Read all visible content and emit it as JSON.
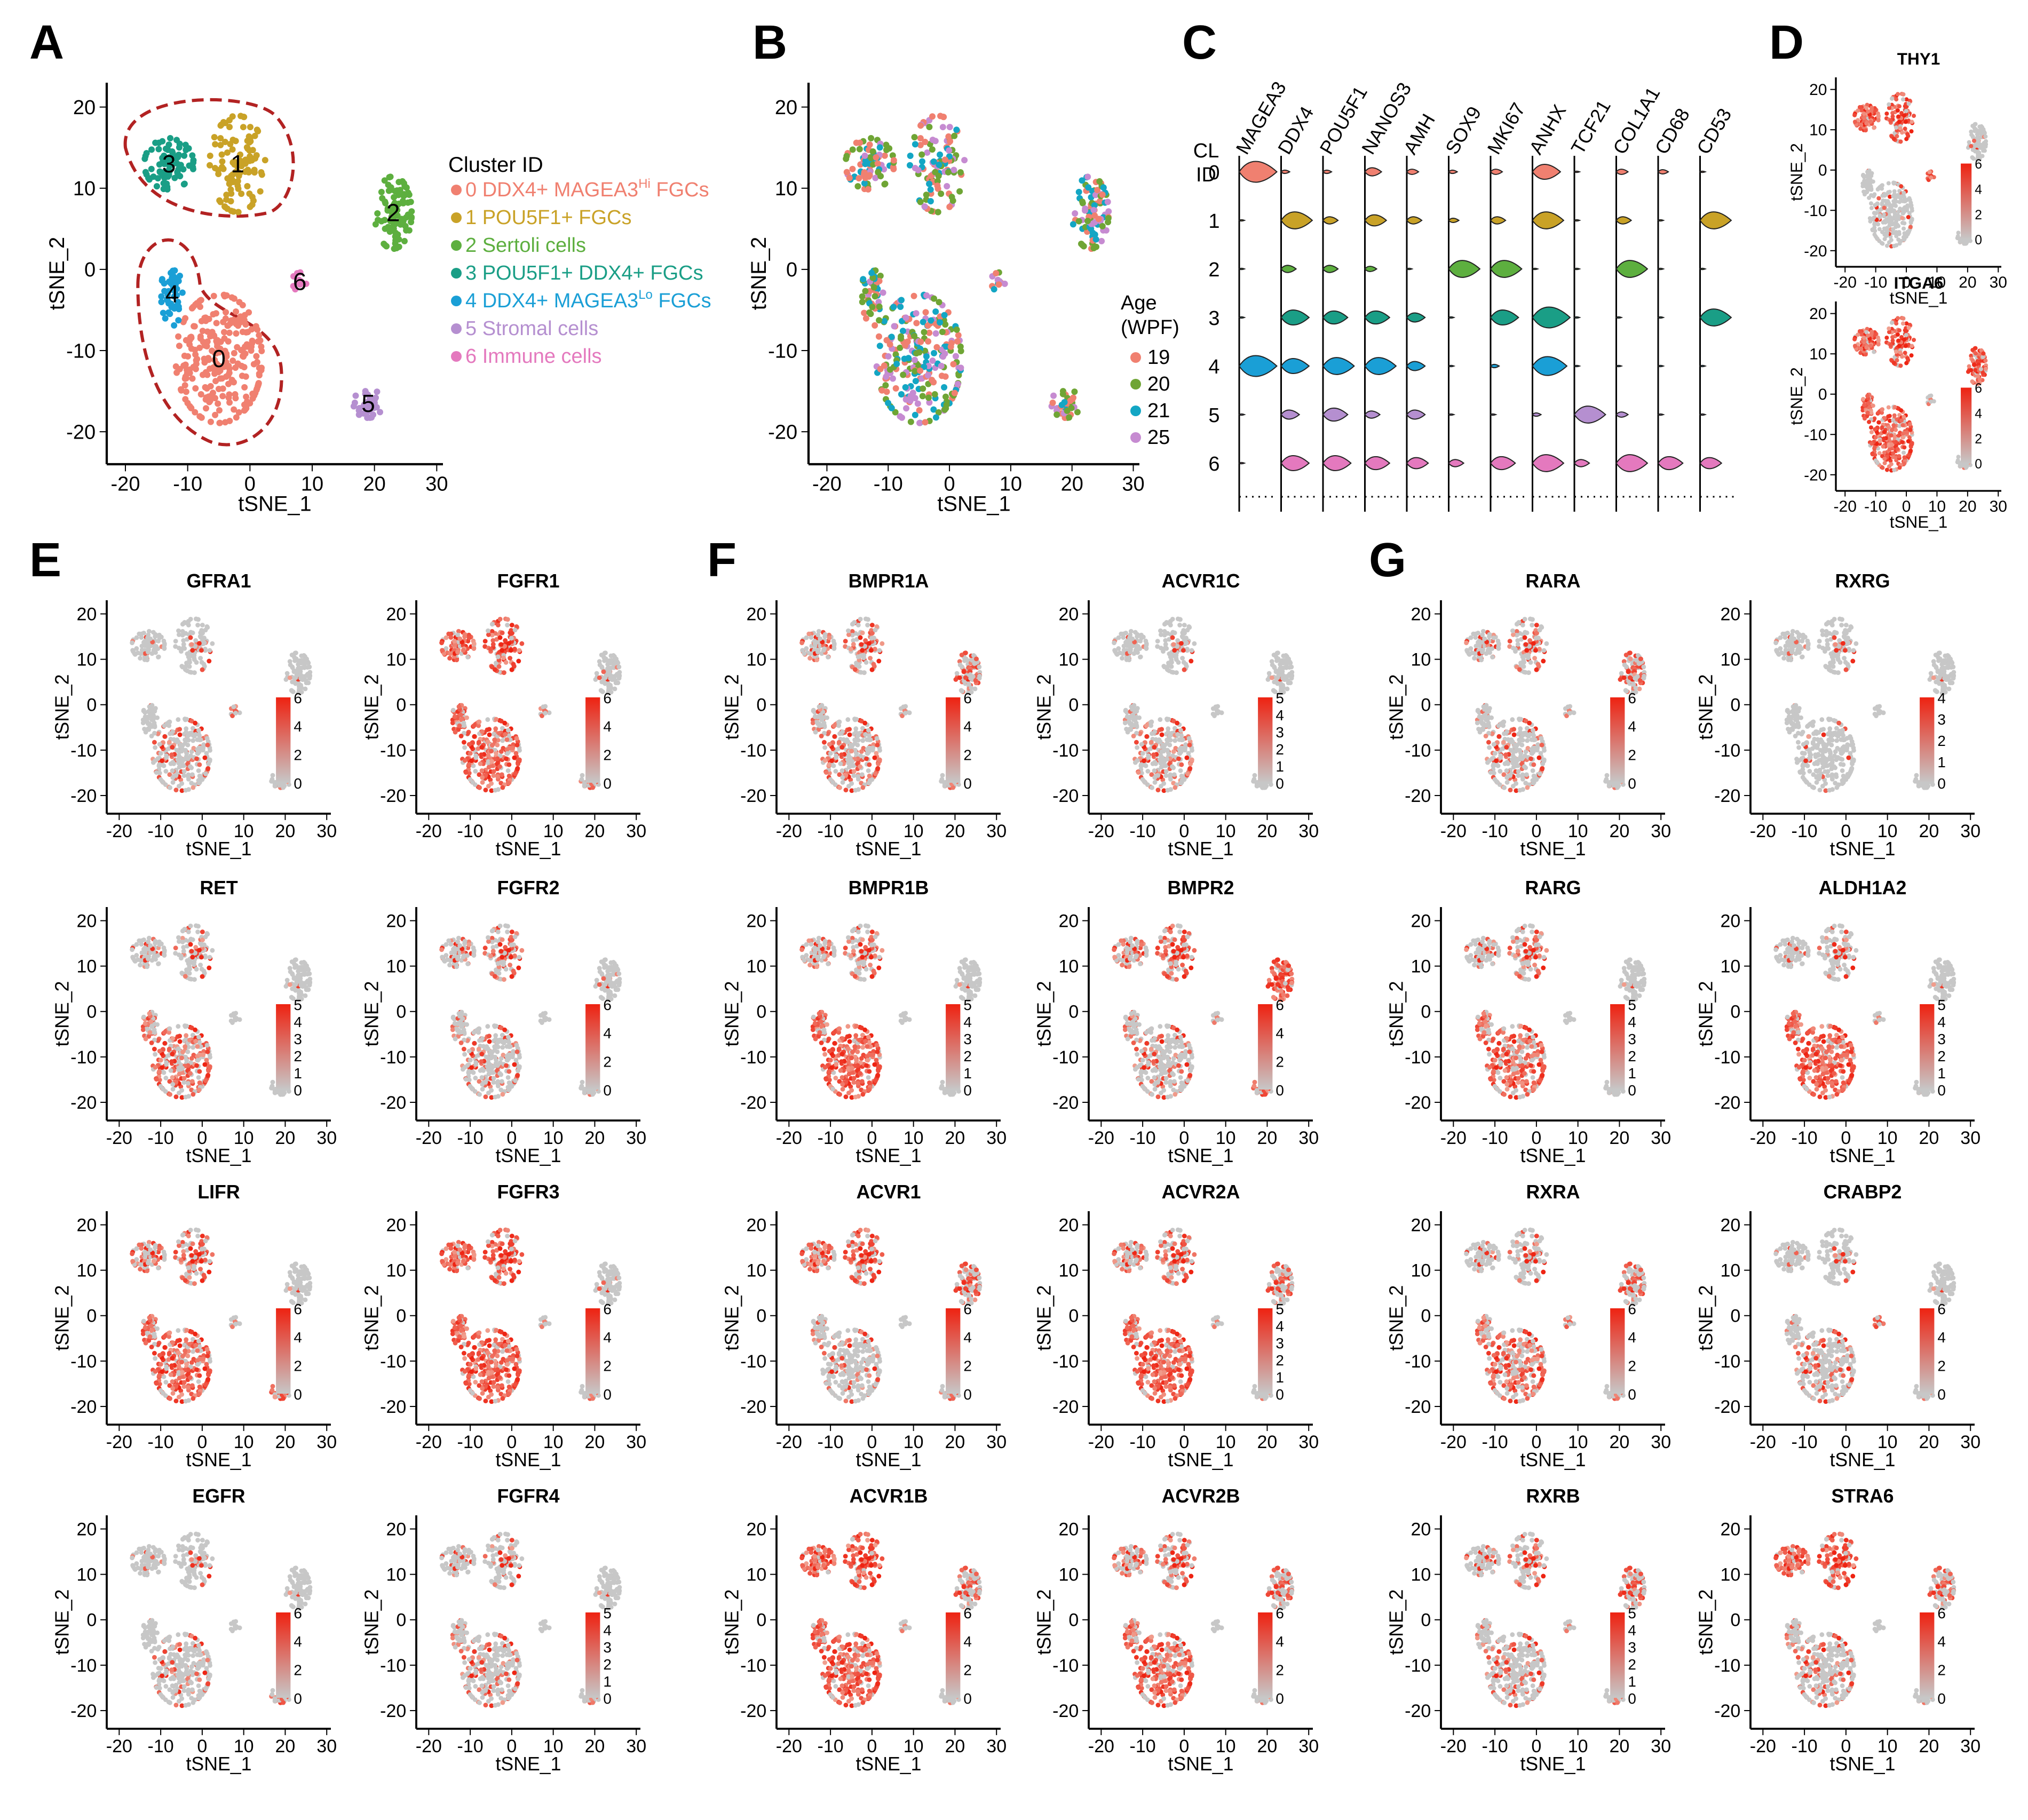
{
  "panel_letters": [
    "A",
    "B",
    "C",
    "D",
    "E",
    "F",
    "G"
  ],
  "axes": {
    "xlabel": "tSNE_1",
    "ylabel": "tSNE_2",
    "xticks": [
      -20,
      -10,
      0,
      10,
      20,
      30
    ],
    "yticks": [
      20,
      10,
      0,
      -10,
      -20
    ],
    "xlim": [
      -23,
      31
    ],
    "ylim": [
      -24,
      23
    ]
  },
  "colors": {
    "clusters": [
      "#F08070",
      "#C9A227",
      "#5DAF3F",
      "#1A9E86",
      "#1A9FD6",
      "#B58FD0",
      "#E479BE"
    ],
    "ages": [
      "#F08070",
      "#6FA535",
      "#13A6C4",
      "#C68BD1"
    ],
    "grey": "#C7C7C7",
    "red": "#EE2211",
    "dashed_outline": "#B22222"
  },
  "chart_data": [
    {
      "panel": "A",
      "type": "scatter",
      "legend_title": "Cluster ID",
      "cluster_numbers": [
        "0",
        "1",
        "2",
        "3",
        "4",
        "5",
        "6"
      ],
      "legend": [
        {
          "prefix": "0 DDX4+ MAGEA3",
          "sup": "Hi",
          "suffix": " FGCs"
        },
        {
          "prefix": "1 POU5F1+ FGCs",
          "sup": "",
          "suffix": ""
        },
        {
          "prefix": "2 Sertoli cells",
          "sup": "",
          "suffix": ""
        },
        {
          "prefix": "3 POU5F1+ DDX4+ FGCs",
          "sup": "",
          "suffix": ""
        },
        {
          "prefix": "4 DDX4+ MAGEA3",
          "sup": "Lo",
          "suffix": " FGCs"
        },
        {
          "prefix": "5 Stromal cells",
          "sup": "",
          "suffix": ""
        },
        {
          "prefix": "6 Immune cells",
          "sup": "",
          "suffix": ""
        }
      ],
      "cluster_centers": [
        {
          "id": 0,
          "x": -5,
          "y": -11,
          "rx": 7,
          "ry": 8,
          "n": 260
        },
        {
          "id": 1,
          "x": -2,
          "y": 13,
          "rx": 4.5,
          "ry": 6,
          "n": 110
        },
        {
          "id": 2,
          "x": 23,
          "y": 7,
          "rx": 3,
          "ry": 4.5,
          "n": 90
        },
        {
          "id": 3,
          "x": -13,
          "y": 13,
          "rx": 4,
          "ry": 3.2,
          "n": 80
        },
        {
          "id": 4,
          "x": -12.5,
          "y": -3,
          "rx": 1.8,
          "ry": 4,
          "n": 45
        },
        {
          "id": 5,
          "x": 19,
          "y": -16.5,
          "rx": 2.4,
          "ry": 1.8,
          "n": 35
        },
        {
          "id": 6,
          "x": 8,
          "y": -1.5,
          "rx": 1.2,
          "ry": 1.2,
          "n": 12
        }
      ]
    },
    {
      "panel": "B",
      "type": "scatter",
      "legend_title_line1": "Age",
      "legend_title_line2": "(WPF)",
      "ages": [
        "19",
        "20",
        "21",
        "25"
      ]
    },
    {
      "panel": "C",
      "type": "violin",
      "row_title_line1": "CL",
      "row_title_line2": "ID",
      "clusters": [
        "0",
        "1",
        "2",
        "3",
        "4",
        "5",
        "6"
      ],
      "genes": [
        "MAGEA3",
        "DDX4",
        "POU5F1",
        "NANOS3",
        "AMH",
        "SOX9",
        "MKI67",
        "ANHX",
        "TCF21",
        "COL1A1",
        "CD68",
        "CD53"
      ],
      "expression": [
        [
          1.0,
          0.1,
          0.1,
          0.35,
          0.2,
          0.1,
          0.2,
          0.7,
          0.0,
          0.2,
          0.15,
          0.0
        ],
        [
          0.0,
          0.8,
          0.3,
          0.5,
          0.3,
          0.15,
          0.3,
          0.8,
          0.0,
          0.3,
          0.0,
          0.8
        ],
        [
          0.0,
          0.3,
          0.3,
          0.2,
          0.0,
          0.8,
          0.8,
          0.0,
          0.0,
          0.8,
          0.0,
          0.0
        ],
        [
          0.0,
          0.7,
          0.6,
          0.6,
          0.4,
          0.0,
          0.7,
          1.0,
          0.0,
          0.0,
          0.0,
          0.8
        ],
        [
          1.0,
          0.7,
          0.8,
          0.8,
          0.4,
          0.0,
          0.1,
          0.9,
          0.0,
          0.0,
          0.0,
          0.0
        ],
        [
          0.0,
          0.4,
          0.6,
          0.3,
          0.4,
          0.0,
          0.0,
          0.1,
          0.8,
          0.2,
          0.0,
          0.0
        ],
        [
          0.0,
          0.7,
          0.7,
          0.6,
          0.5,
          0.3,
          0.6,
          0.8,
          0.3,
          0.8,
          0.6,
          0.5
        ]
      ]
    },
    {
      "panel": "D",
      "type": "scatter",
      "genes": [
        {
          "name": "THY1",
          "max": 6,
          "ticks": [
            "6",
            "4",
            "2",
            "0"
          ],
          "expr": [
            0.1,
            0.85,
            0.1,
            0.95,
            0.1,
            0.1,
            0.95
          ]
        },
        {
          "name": "ITGA6",
          "max": 6,
          "ticks": [
            "6",
            "4",
            "2",
            "0"
          ],
          "expr": [
            0.9,
            0.9,
            0.85,
            0.9,
            0.9,
            0.2,
            0.3
          ]
        }
      ]
    },
    {
      "panel": "E",
      "type": "scatter",
      "genes": [
        {
          "name": "GFRA1",
          "max": 6,
          "ticks": [
            "6",
            "4",
            "2",
            "0"
          ],
          "expr": [
            0.3,
            0.05,
            0.05,
            0.05,
            0.1,
            0.2,
            0.5
          ]
        },
        {
          "name": "FGFR1",
          "max": 6,
          "ticks": [
            "6",
            "4",
            "2",
            "0"
          ],
          "expr": [
            0.8,
            0.85,
            0.1,
            0.85,
            0.8,
            0.4,
            0.4
          ]
        },
        {
          "name": "RET",
          "max": 5,
          "ticks": [
            "5",
            "4",
            "3",
            "2",
            "1",
            "0"
          ],
          "expr": [
            0.6,
            0.2,
            0.05,
            0.2,
            0.5,
            0.05,
            0.1
          ]
        },
        {
          "name": "FGFR2",
          "max": 6,
          "ticks": [
            "6",
            "4",
            "2",
            "0"
          ],
          "expr": [
            0.3,
            0.4,
            0.1,
            0.35,
            0.3,
            0.2,
            0.2
          ]
        },
        {
          "name": "LIFR",
          "max": 6,
          "ticks": [
            "6",
            "4",
            "2",
            "0"
          ],
          "expr": [
            0.8,
            0.5,
            0.05,
            0.6,
            0.7,
            0.8,
            0.3
          ]
        },
        {
          "name": "FGFR3",
          "max": 6,
          "ticks": [
            "6",
            "4",
            "2",
            "0"
          ],
          "expr": [
            0.9,
            0.85,
            0.1,
            0.9,
            0.9,
            0.3,
            0.3
          ]
        },
        {
          "name": "EGFR",
          "max": 6,
          "ticks": [
            "6",
            "4",
            "2",
            "0"
          ],
          "expr": [
            0.2,
            0.05,
            0.05,
            0.05,
            0.1,
            0.5,
            0.1
          ]
        },
        {
          "name": "FGFR4",
          "max": 5,
          "ticks": [
            "5",
            "4",
            "3",
            "2",
            "1",
            "0"
          ],
          "expr": [
            0.3,
            0.2,
            0.05,
            0.2,
            0.3,
            0.3,
            0.2
          ]
        }
      ]
    },
    {
      "panel": "F",
      "type": "scatter",
      "genes": [
        {
          "name": "BMPR1A",
          "max": 6,
          "ticks": [
            "6",
            "4",
            "2",
            "0"
          ],
          "expr": [
            0.45,
            0.35,
            0.4,
            0.4,
            0.35,
            0.3,
            0.3
          ]
        },
        {
          "name": "ACVR1C",
          "max": 5,
          "ticks": [
            "5",
            "4",
            "3",
            "2",
            "1",
            "0"
          ],
          "expr": [
            0.35,
            0.05,
            0.05,
            0.05,
            0.2,
            0.05,
            0.05
          ]
        },
        {
          "name": "BMPR1B",
          "max": 5,
          "ticks": [
            "5",
            "4",
            "3",
            "2",
            "1",
            "0"
          ],
          "expr": [
            0.95,
            0.35,
            0.05,
            0.4,
            0.8,
            0.05,
            0.05
          ]
        },
        {
          "name": "BMPR2",
          "max": 6,
          "ticks": [
            "6",
            "4",
            "2",
            "0"
          ],
          "expr": [
            0.3,
            0.6,
            0.9,
            0.5,
            0.35,
            0.7,
            0.3
          ]
        },
        {
          "name": "ACVR1",
          "max": 6,
          "ticks": [
            "6",
            "4",
            "2",
            "0"
          ],
          "expr": [
            0.2,
            0.7,
            0.5,
            0.7,
            0.3,
            0.4,
            0.2
          ]
        },
        {
          "name": "ACVR2A",
          "max": 5,
          "ticks": [
            "5",
            "4",
            "3",
            "2",
            "1",
            "0"
          ],
          "expr": [
            0.9,
            0.5,
            0.4,
            0.5,
            0.8,
            0.2,
            0.3
          ]
        },
        {
          "name": "ACVR1B",
          "max": 6,
          "ticks": [
            "6",
            "4",
            "2",
            "0"
          ],
          "expr": [
            0.85,
            0.9,
            0.35,
            0.9,
            0.8,
            0.2,
            0.3
          ]
        },
        {
          "name": "ACVR2B",
          "max": 6,
          "ticks": [
            "6",
            "4",
            "2",
            "0"
          ],
          "expr": [
            0.75,
            0.45,
            0.4,
            0.5,
            0.6,
            0.2,
            0.2
          ]
        }
      ]
    },
    {
      "panel": "G",
      "type": "scatter",
      "genes": [
        {
          "name": "RARA",
          "max": 6,
          "ticks": [
            "6",
            "4",
            "2",
            "0"
          ],
          "expr": [
            0.3,
            0.3,
            0.45,
            0.3,
            0.2,
            0.2,
            0.3
          ]
        },
        {
          "name": "RXRG",
          "max": 4,
          "ticks": [
            "4",
            "3",
            "2",
            "1",
            "0"
          ],
          "expr": [
            0.05,
            0.05,
            0.05,
            0.05,
            0.05,
            0.05,
            0.05
          ]
        },
        {
          "name": "RARG",
          "max": 5,
          "ticks": [
            "5",
            "4",
            "3",
            "2",
            "1",
            "0"
          ],
          "expr": [
            0.7,
            0.35,
            0.05,
            0.3,
            0.6,
            0.1,
            0.2
          ]
        },
        {
          "name": "ALDH1A2",
          "max": 5,
          "ticks": [
            "5",
            "4",
            "3",
            "2",
            "1",
            "0"
          ],
          "expr": [
            0.9,
            0.2,
            0.05,
            0.1,
            0.85,
            0.1,
            0.3
          ]
        },
        {
          "name": "RXRA",
          "max": 6,
          "ticks": [
            "6",
            "4",
            "2",
            "0"
          ],
          "expr": [
            0.6,
            0.2,
            0.4,
            0.2,
            0.5,
            0.3,
            0.5
          ]
        },
        {
          "name": "CRABP2",
          "max": 6,
          "ticks": [
            "6",
            "4",
            "2",
            "0"
          ],
          "expr": [
            0.3,
            0.05,
            0.05,
            0.05,
            0.2,
            0.2,
            0.8
          ]
        },
        {
          "name": "RXRB",
          "max": 5,
          "ticks": [
            "5",
            "4",
            "3",
            "2",
            "1",
            "0"
          ],
          "expr": [
            0.3,
            0.3,
            0.5,
            0.3,
            0.25,
            0.3,
            0.3
          ]
        },
        {
          "name": "STRA6",
          "max": 6,
          "ticks": [
            "6",
            "4",
            "2",
            "0"
          ],
          "expr": [
            0.3,
            0.85,
            0.35,
            0.9,
            0.3,
            0.2,
            0.2
          ]
        }
      ]
    }
  ]
}
